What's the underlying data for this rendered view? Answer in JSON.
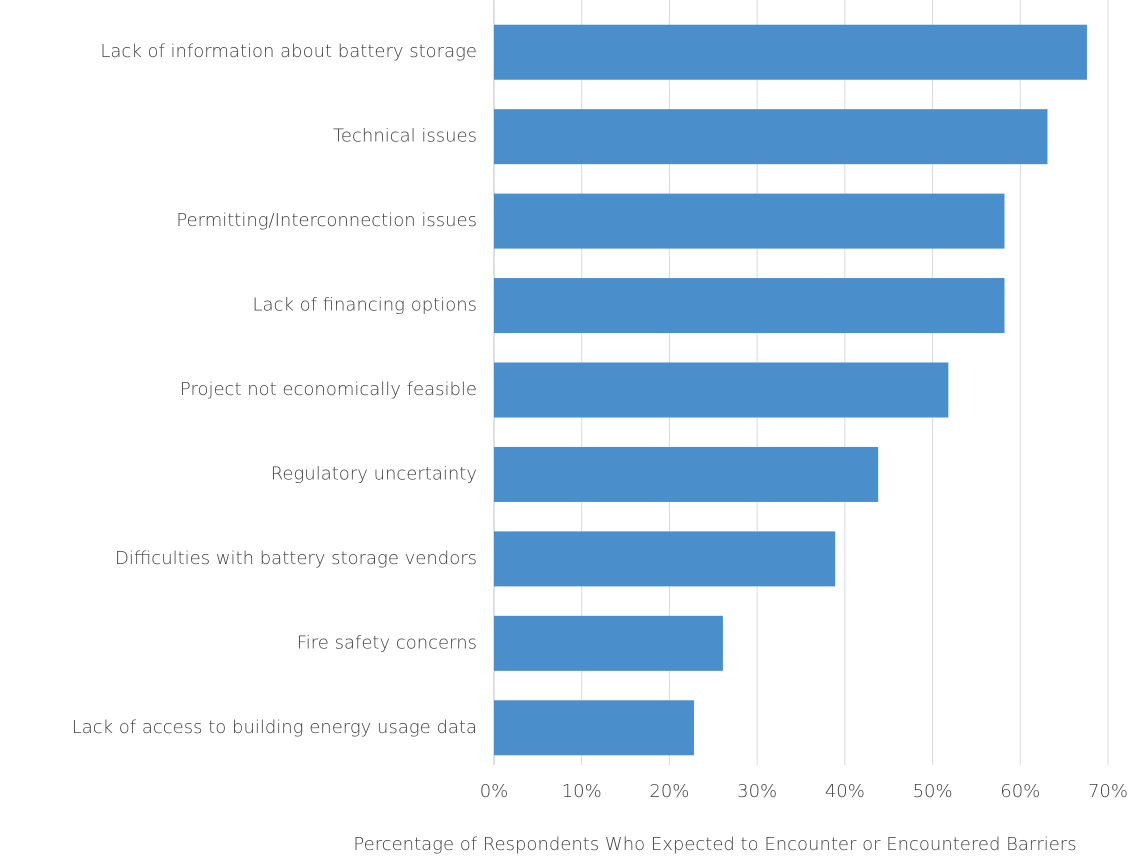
{
  "chart_data": {
    "type": "bar",
    "orientation": "horizontal",
    "xlabel": "Percentage of Respondents Who Expected to Encounter or Encountered Barriers",
    "categories": [
      "Lack of information about battery storage",
      "Technical issues",
      "Permitting/Interconnection issues",
      "Lack of financing options",
      "Project not economically feasible",
      "Regulatory uncertainty",
      "Difficulties with battery storage vendors",
      "Fire safety concerns",
      "Lack of access to building energy usage data"
    ],
    "values": [
      67.6,
      63.1,
      58.2,
      58.2,
      51.8,
      43.8,
      38.9,
      26.1,
      22.8
    ],
    "color": "#4a8ecc",
    "xlim": [
      0,
      70
    ],
    "xticks": [
      {
        "value": 0,
        "label": "0%"
      },
      {
        "value": 10,
        "label": "10%"
      },
      {
        "value": 20,
        "label": "20%"
      },
      {
        "value": 30,
        "label": "30%"
      },
      {
        "value": 40,
        "label": "40%"
      },
      {
        "value": 50,
        "label": "50%"
      },
      {
        "value": 60,
        "label": "60%"
      },
      {
        "value": 70,
        "label": "70%"
      }
    ],
    "grid": true
  }
}
